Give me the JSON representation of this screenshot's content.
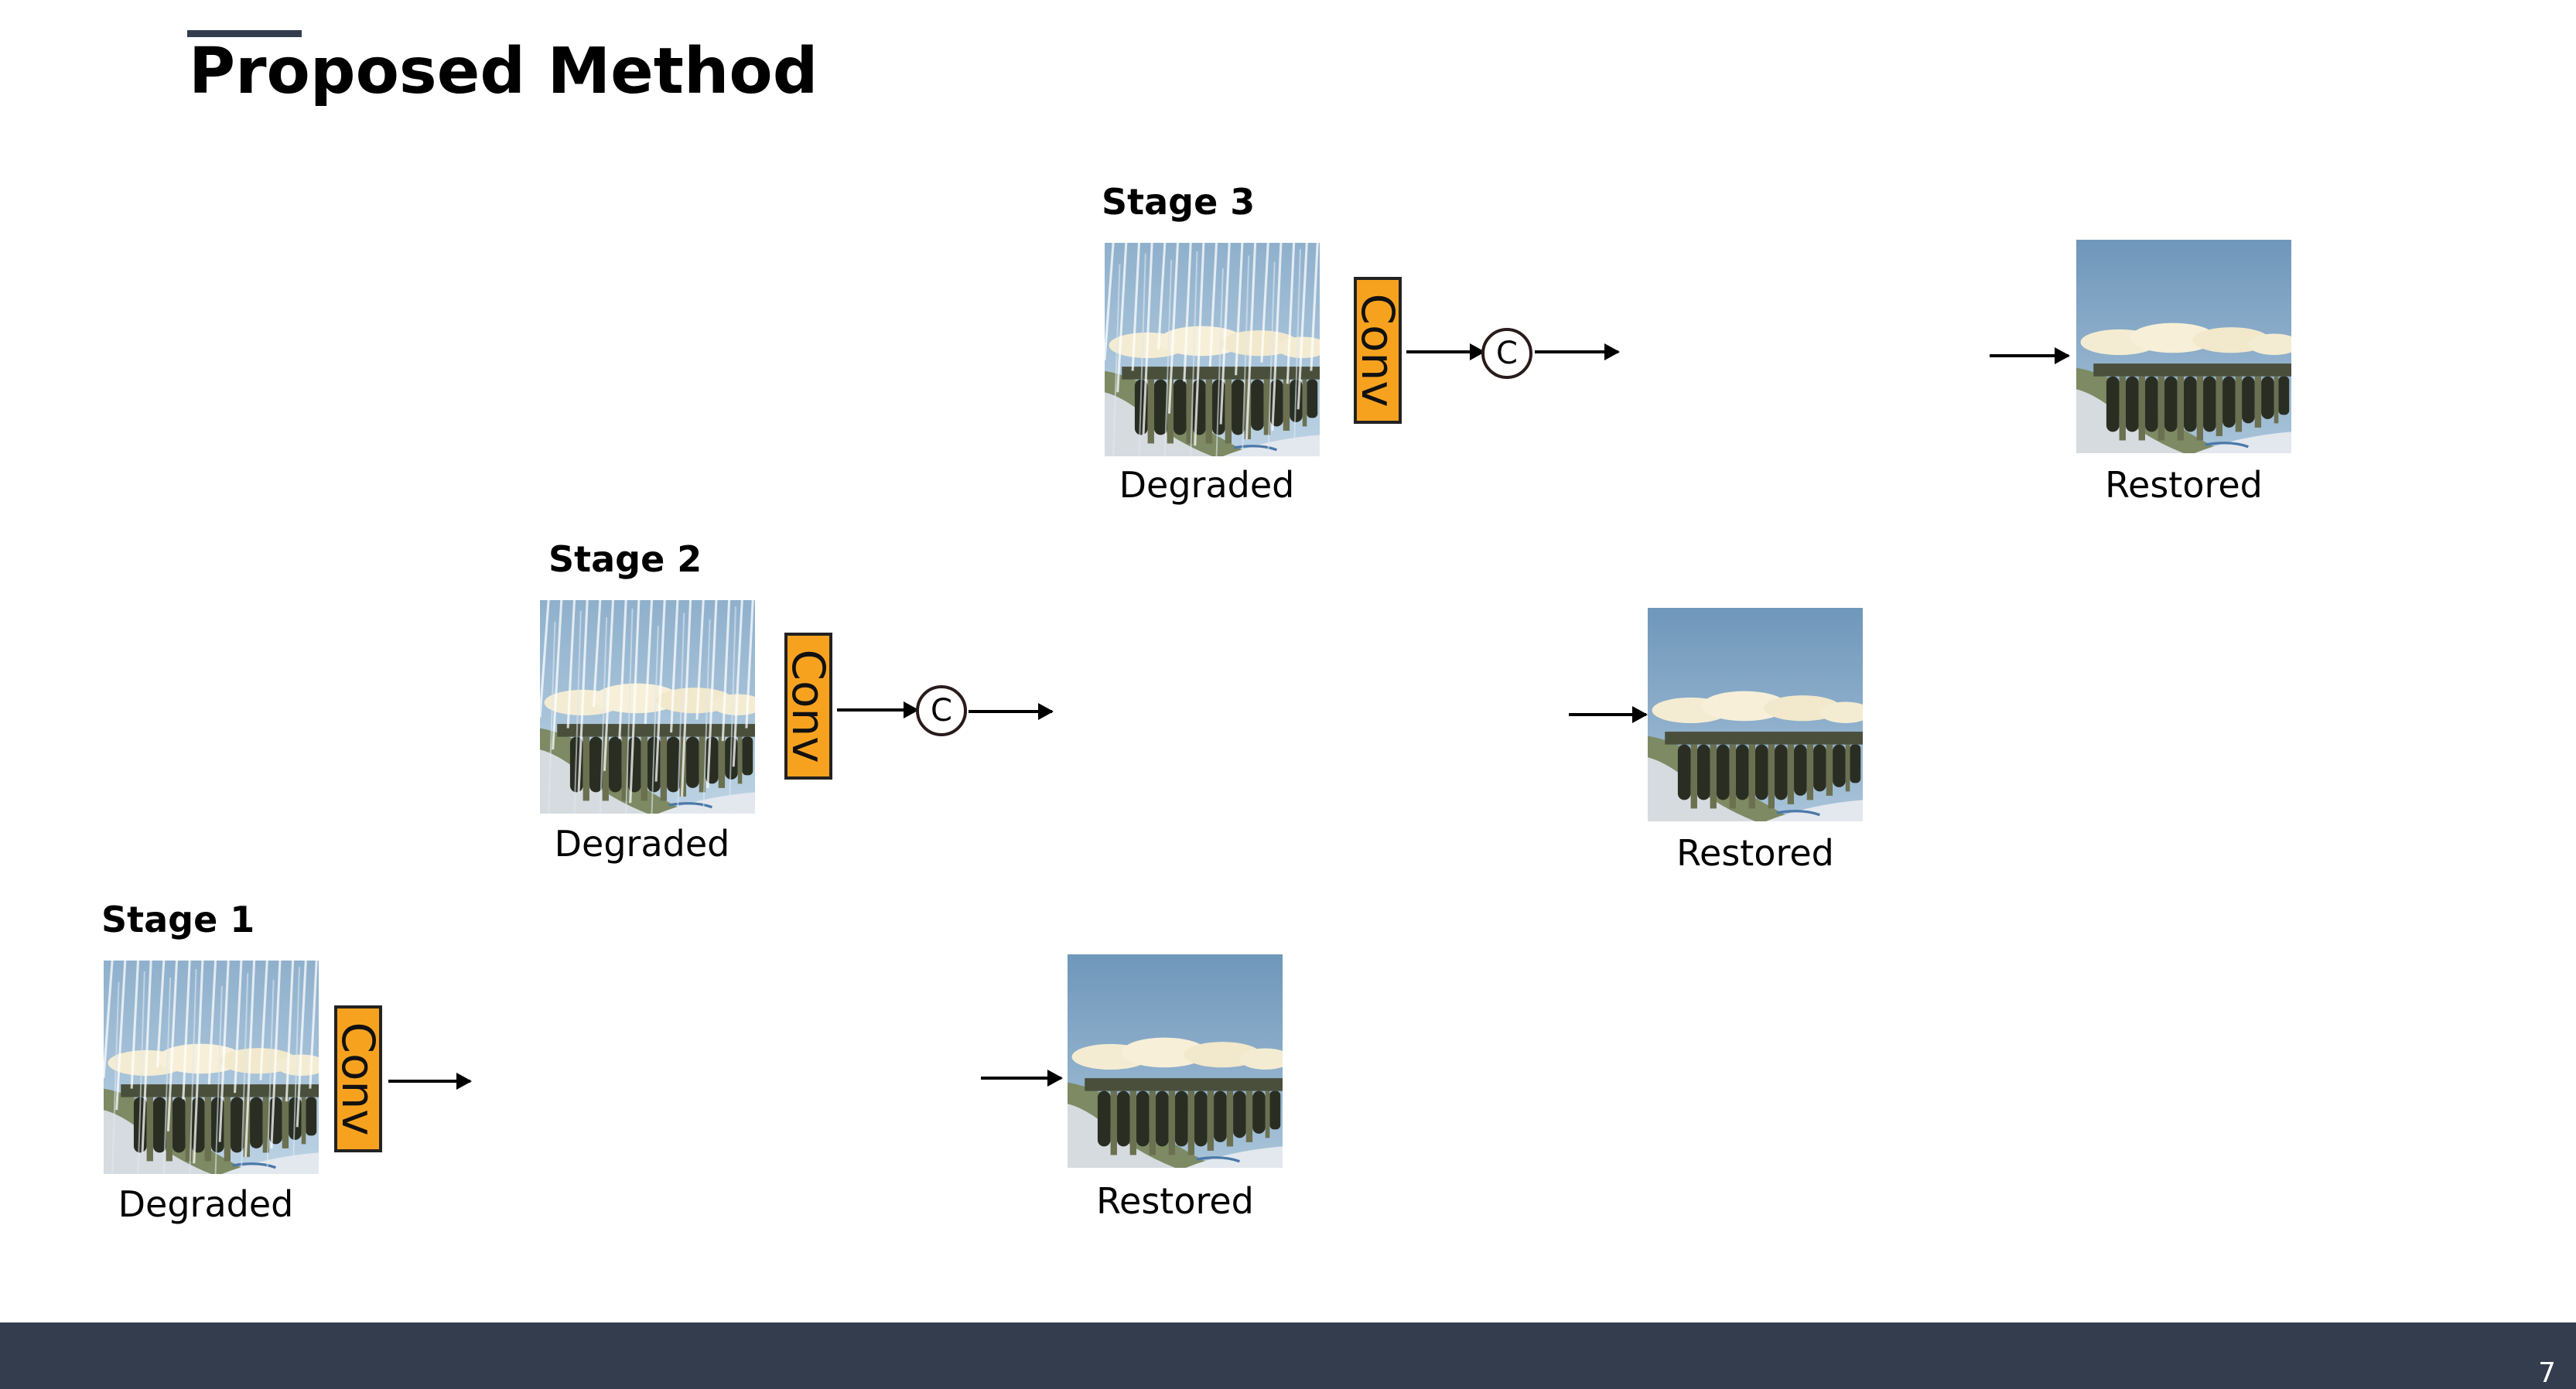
{
  "slide": {
    "title": "Proposed Method",
    "page_number": "7"
  },
  "stages": [
    {
      "label": "Stage 1",
      "input_caption": "Degraded",
      "output_caption": "Restored",
      "conv_label": "Conv"
    },
    {
      "label": "Stage 2",
      "input_caption": "Degraded",
      "output_caption": "Restored",
      "conv_label": "Conv",
      "concat_label": "C"
    },
    {
      "label": "Stage 3",
      "input_caption": "Degraded",
      "output_caption": "Restored",
      "conv_label": "Conv",
      "concat_label": "C"
    }
  ],
  "colors": {
    "accent": "#333d4e",
    "conv_block": "#f7a21f",
    "footer": "#333d4e"
  }
}
